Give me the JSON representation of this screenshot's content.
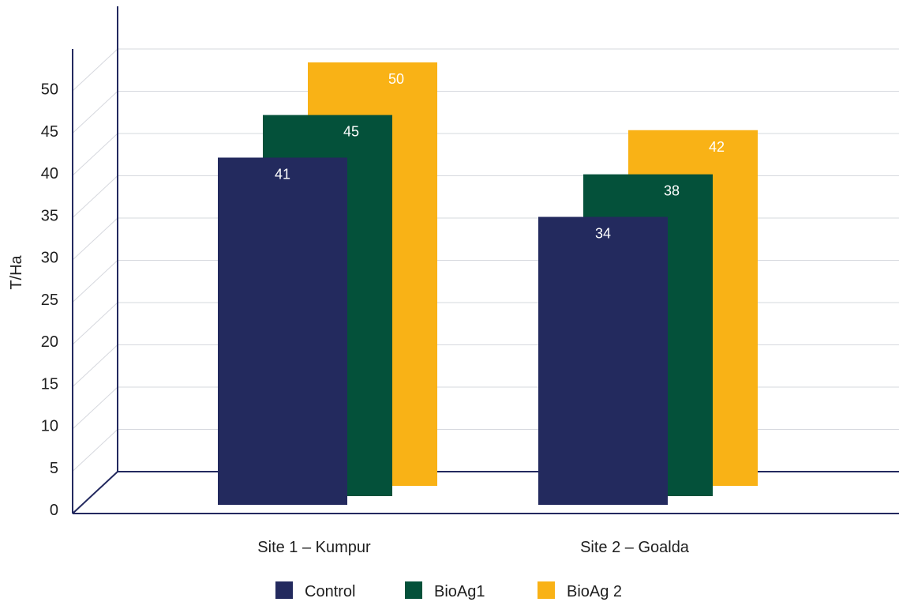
{
  "chart_data": {
    "type": "bar",
    "categories": [
      "Site 1 – Kumpur",
      "Site 2 – Goalda"
    ],
    "series": [
      {
        "name": "Control",
        "values": [
          41,
          34
        ],
        "color": "#232a5e"
      },
      {
        "name": "BioAg1",
        "values": [
          45,
          38
        ],
        "color": "#04513a"
      },
      {
        "name": "BioAg 2",
        "values": [
          50,
          42
        ],
        "color": "#f9b216"
      }
    ],
    "ylabel": "T/Ha",
    "ylim": [
      0,
      50
    ],
    "yticks": [
      0,
      5,
      10,
      15,
      20,
      25,
      30,
      35,
      40,
      45,
      50
    ],
    "grid": true,
    "legend": "bottom"
  }
}
